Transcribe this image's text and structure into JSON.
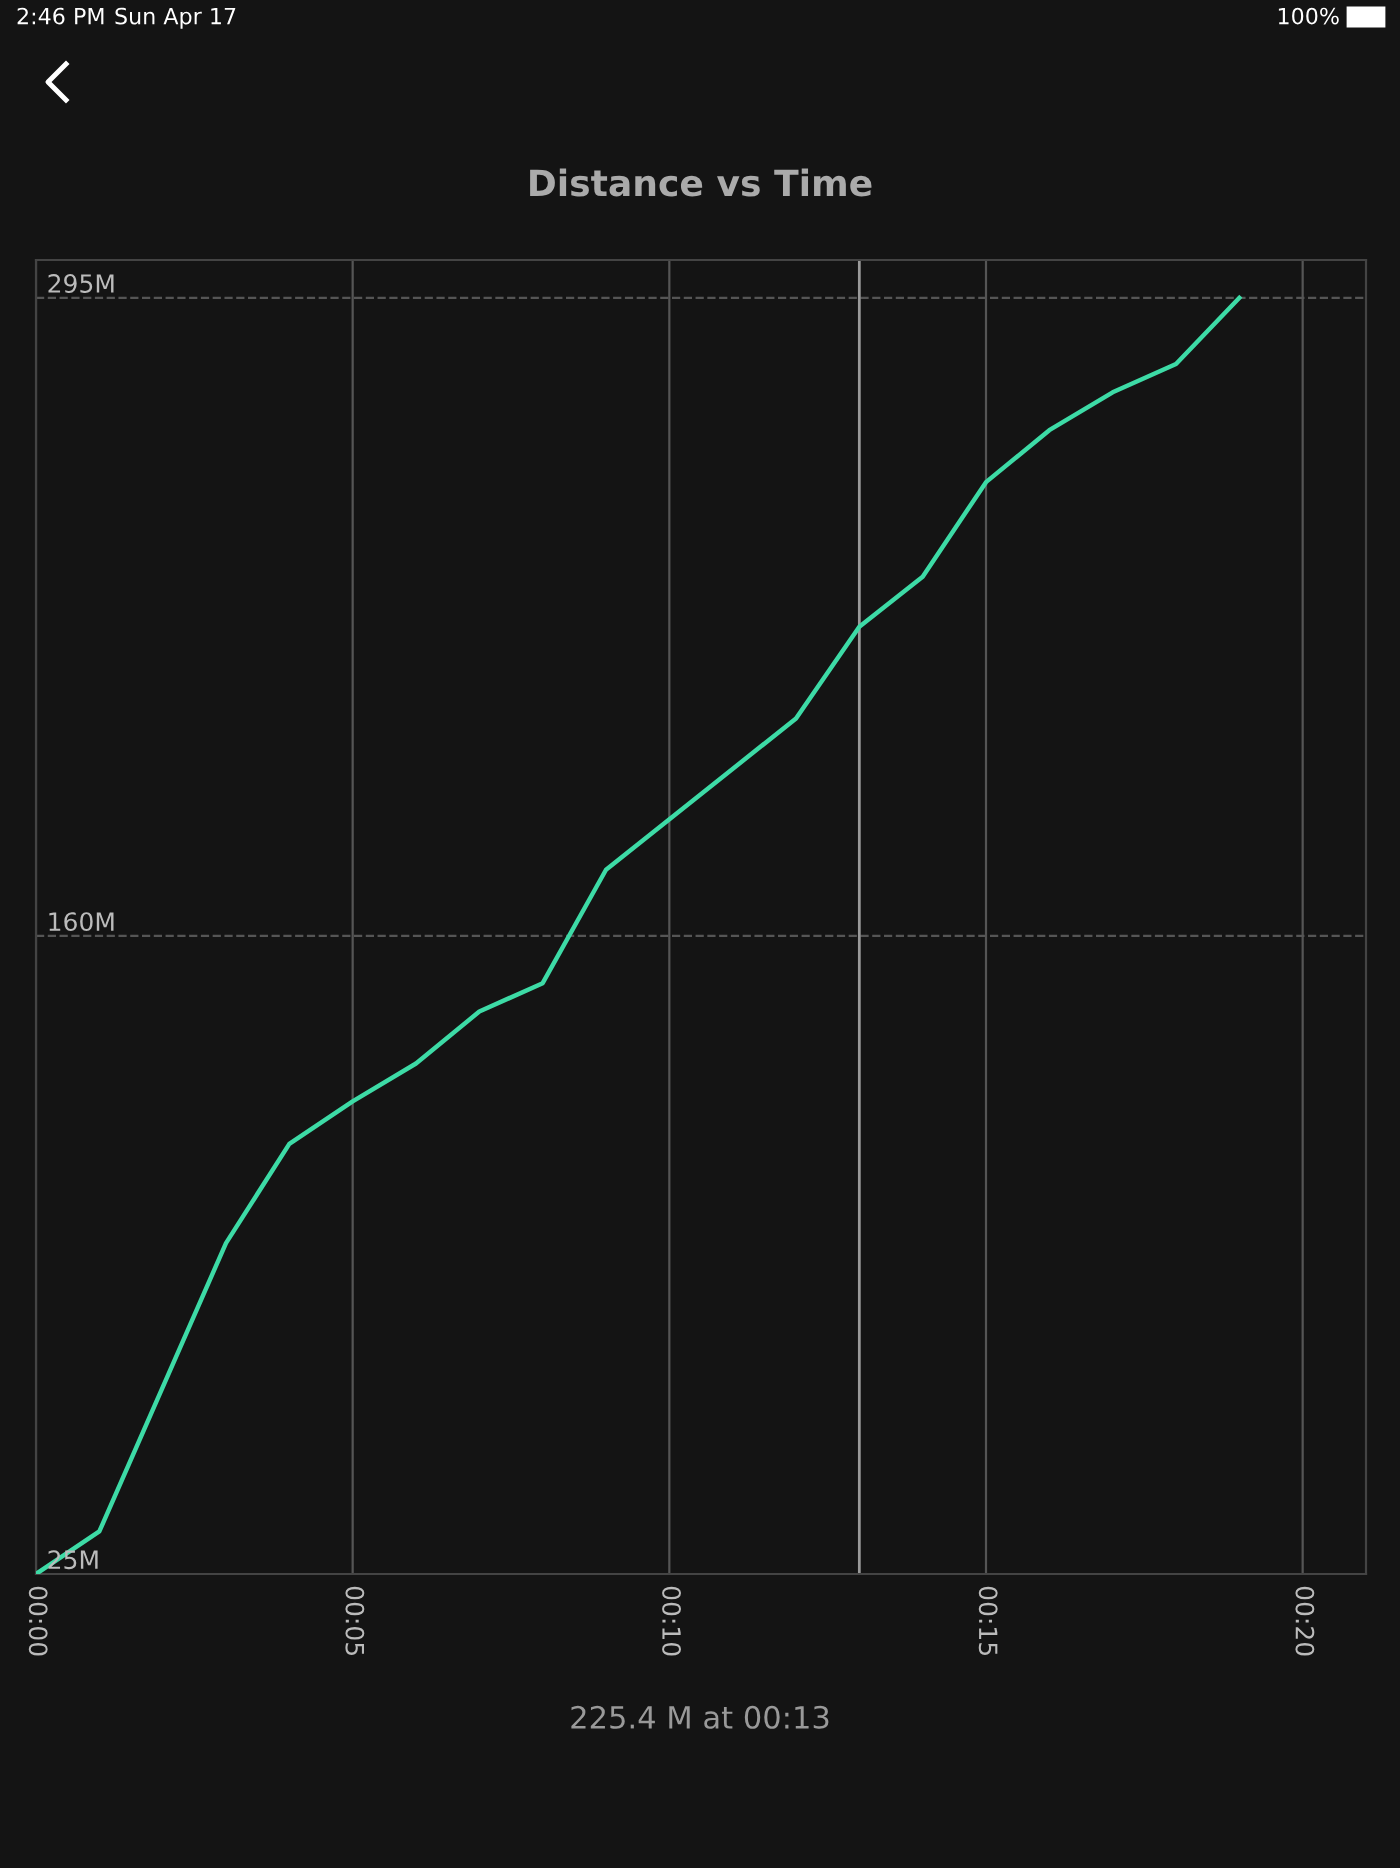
{
  "chart_data": {
    "type": "line",
    "title": "Distance vs Time",
    "x": [
      0,
      1,
      3,
      4,
      5,
      6,
      7,
      8,
      9,
      12,
      13,
      14,
      15,
      16,
      17,
      18,
      19
    ],
    "series": [
      {
        "color": "#3ddba6",
        "values": [
          25,
          34,
          95,
          116,
          125,
          133,
          144,
          150,
          174,
          206,
          225.4,
          236,
          256,
          267,
          275,
          281,
          295
        ]
      }
    ],
    "xlim": [
      0,
      21
    ],
    "ylim": [
      25,
      303
    ],
    "xticks": [
      {
        "value": 0,
        "label": "00:00"
      },
      {
        "value": 5,
        "label": "00:05"
      },
      {
        "value": 10,
        "label": "00:10"
      },
      {
        "value": 15,
        "label": "00:15"
      },
      {
        "value": 20,
        "label": "00:20"
      }
    ],
    "yticks": [
      {
        "value": 25,
        "label": "25M"
      },
      {
        "value": 160,
        "label": "160M"
      },
      {
        "value": 295,
        "label": "295M"
      }
    ],
    "grid": true,
    "legend": false,
    "marker": "none",
    "line_style": "solid",
    "ref_lines": [
      {
        "axis": "x",
        "value": 13,
        "color": "#9a9a9a"
      }
    ],
    "annotations": [
      "225.4 M at 00:13",
      "2:46 PM",
      "Sun Apr 17",
      "100%"
    ]
  }
}
